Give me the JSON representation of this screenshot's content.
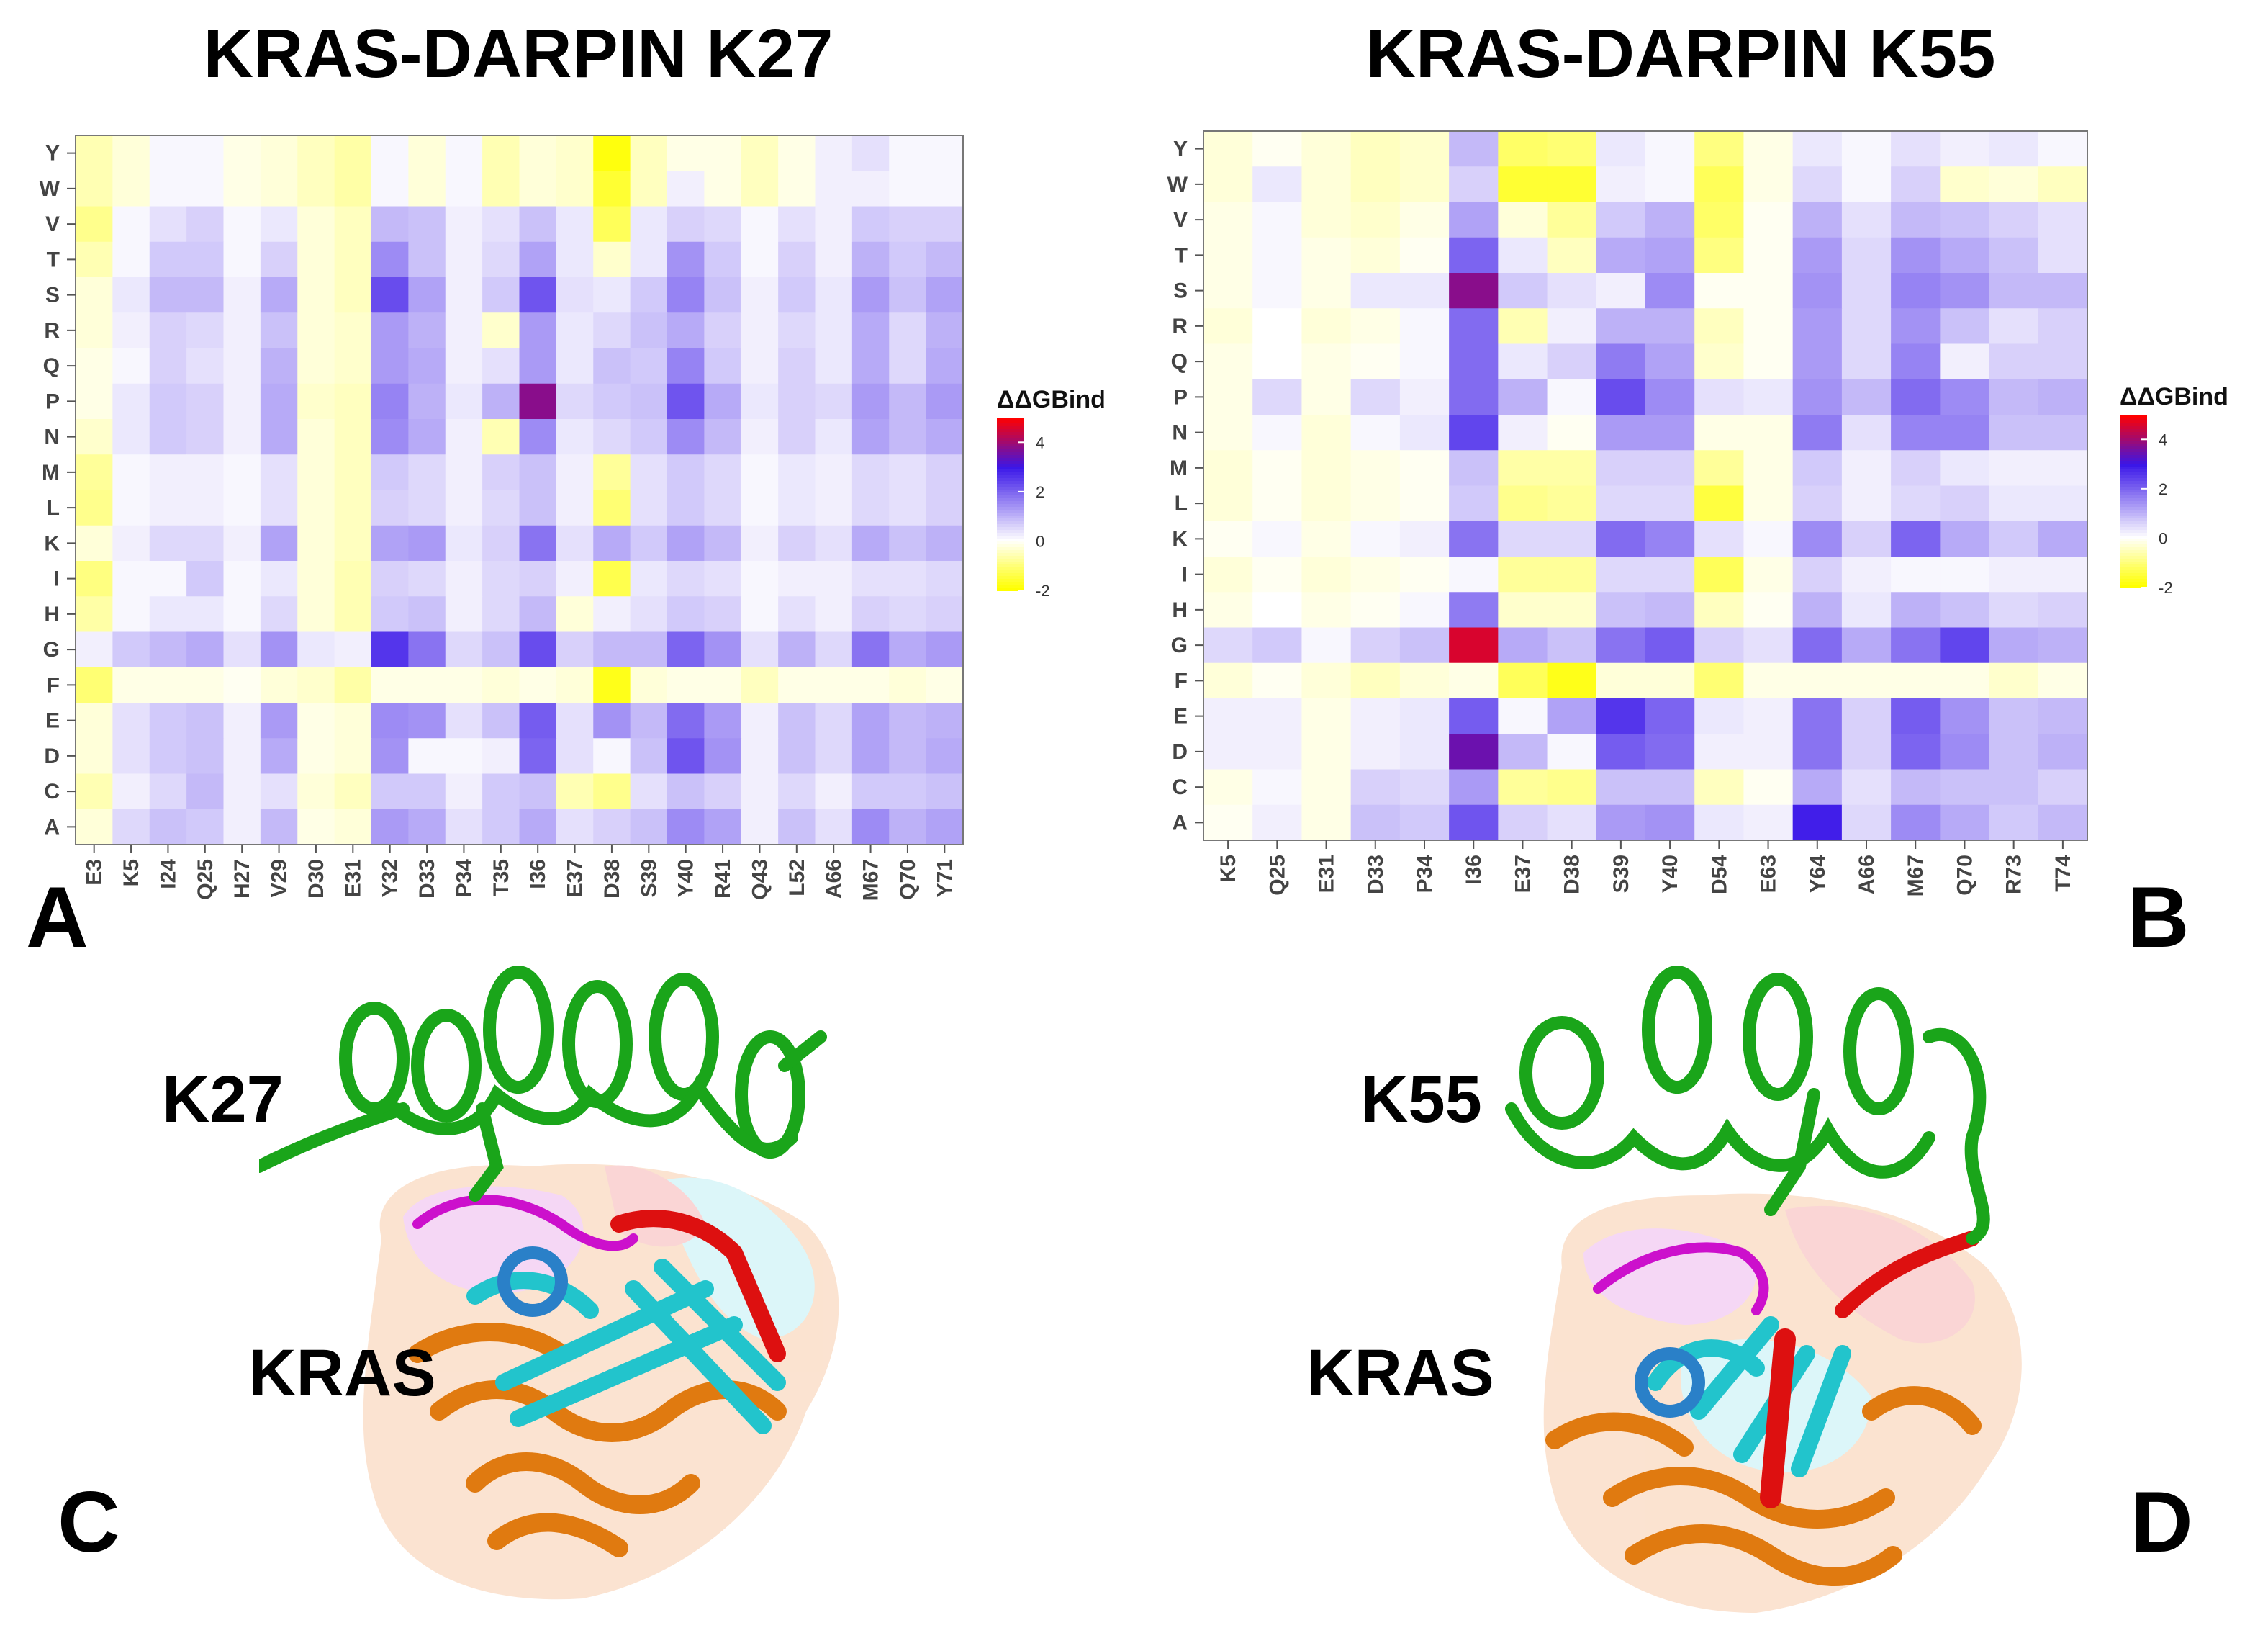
{
  "panels": {
    "A": "A",
    "B": "B",
    "C": "C",
    "D": "D"
  },
  "structure_labels": {
    "k27": "K27",
    "k55": "K55",
    "kras_left": "KRAS",
    "kras_right": "KRAS"
  },
  "legend": {
    "title": "ΔΔGBind",
    "ticks": [
      "4",
      "2",
      "0",
      "-2"
    ],
    "min": -2,
    "max": 5,
    "colors": {
      "low": "#ffff00",
      "zero": "#ffffff",
      "mid": "#3a16e8",
      "high": "#ff0000"
    }
  },
  "colors": {
    "darpin": "#1aa51a",
    "kras_core": "#e07a10",
    "kras_sheet": "#22c4cc",
    "switch1": "#cc10cc",
    "switch2": "#dd1010",
    "helix_blue": "#2a80c8"
  },
  "chart_data": [
    {
      "type": "heatmap",
      "title": "KRAS-DARPIN K27",
      "x": [
        "E3",
        "K5",
        "I24",
        "Q25",
        "H27",
        "V29",
        "D30",
        "E31",
        "Y32",
        "D33",
        "P34",
        "T35",
        "I36",
        "E37",
        "D38",
        "S39",
        "Y40",
        "R41",
        "Q43",
        "L52",
        "A66",
        "M67",
        "Q70",
        "Y71"
      ],
      "y": [
        "Y",
        "W",
        "V",
        "T",
        "S",
        "R",
        "Q",
        "P",
        "N",
        "M",
        "L",
        "K",
        "I",
        "H",
        "G",
        "F",
        "E",
        "D",
        "C",
        "A"
      ],
      "values": [
        [
          -0.6,
          -0.3,
          0.1,
          0.1,
          -0.2,
          -0.3,
          -0.5,
          -0.7,
          0.1,
          -0.3,
          0.1,
          -0.6,
          -0.3,
          -0.4,
          -1.9,
          -0.5,
          -0.2,
          -0.2,
          -0.5,
          -0.2,
          0.2,
          0.4,
          0.1,
          0.1
        ],
        [
          -0.6,
          -0.3,
          0.1,
          0.1,
          -0.2,
          -0.3,
          -0.5,
          -0.7,
          0.1,
          -0.3,
          0.1,
          -0.6,
          -0.3,
          -0.4,
          -1.6,
          -0.5,
          0.2,
          -0.2,
          -0.5,
          -0.2,
          0.2,
          0.2,
          0.1,
          0.1
        ],
        [
          -0.9,
          0.1,
          0.4,
          0.6,
          0.1,
          0.3,
          -0.3,
          -0.5,
          0.9,
          0.8,
          0.2,
          0.4,
          0.8,
          0.3,
          -1.3,
          0.3,
          0.6,
          0.5,
          0.1,
          0.4,
          0.2,
          0.7,
          0.6,
          0.6
        ],
        [
          -0.6,
          0.1,
          0.7,
          0.7,
          0.1,
          0.6,
          -0.3,
          -0.5,
          1.5,
          0.8,
          0.2,
          0.5,
          1.2,
          0.3,
          -0.4,
          0.3,
          1.4,
          0.7,
          0.1,
          0.6,
          0.2,
          1.0,
          0.7,
          0.9
        ],
        [
          -0.3,
          0.3,
          0.9,
          0.9,
          0.2,
          1.1,
          -0.3,
          -0.5,
          2.3,
          1.2,
          0.2,
          0.7,
          2.2,
          0.4,
          0.3,
          0.7,
          1.6,
          0.8,
          0.2,
          0.7,
          0.3,
          1.3,
          0.8,
          1.2
        ],
        [
          -0.3,
          0.2,
          0.6,
          0.5,
          0.2,
          0.8,
          -0.3,
          -0.4,
          1.3,
          1.0,
          0.2,
          -0.4,
          1.3,
          0.3,
          0.5,
          0.8,
          1.1,
          0.6,
          0.2,
          0.5,
          0.3,
          1.1,
          0.5,
          1.0
        ],
        [
          -0.2,
          0.1,
          0.6,
          0.4,
          0.2,
          1.0,
          -0.3,
          -0.4,
          1.3,
          1.1,
          0.2,
          0.4,
          1.3,
          0.3,
          0.8,
          0.7,
          1.6,
          0.7,
          0.2,
          0.6,
          0.3,
          1.1,
          0.5,
          1.1
        ],
        [
          -0.2,
          0.3,
          0.7,
          0.6,
          0.2,
          1.1,
          -0.4,
          -0.5,
          1.6,
          1.0,
          0.3,
          1.0,
          3.8,
          0.5,
          0.7,
          0.8,
          2.2,
          1.1,
          0.3,
          0.6,
          0.5,
          1.3,
          0.9,
          1.3
        ],
        [
          -0.4,
          0.3,
          0.7,
          0.6,
          0.2,
          1.1,
          -0.3,
          -0.5,
          1.5,
          1.1,
          0.2,
          -0.6,
          1.5,
          0.3,
          0.5,
          0.7,
          1.5,
          0.9,
          0.2,
          0.6,
          0.3,
          1.2,
          0.9,
          1.1
        ],
        [
          -0.8,
          0.1,
          0.2,
          0.2,
          0.1,
          0.4,
          -0.3,
          -0.5,
          0.7,
          0.5,
          0.2,
          0.6,
          0.8,
          0.2,
          -0.8,
          0.4,
          0.7,
          0.5,
          0.1,
          0.3,
          0.2,
          0.5,
          0.4,
          0.6
        ],
        [
          -0.9,
          0.1,
          0.2,
          0.2,
          0.1,
          0.4,
          -0.3,
          -0.5,
          0.6,
          0.5,
          0.2,
          0.5,
          0.8,
          0.2,
          -1.1,
          0.4,
          0.7,
          0.5,
          0.1,
          0.3,
          0.2,
          0.5,
          0.4,
          0.6
        ],
        [
          -0.3,
          0.2,
          0.5,
          0.5,
          0.2,
          1.2,
          -0.3,
          -0.5,
          1.2,
          1.3,
          0.3,
          0.6,
          1.8,
          0.4,
          1.1,
          0.7,
          1.2,
          0.9,
          0.2,
          0.6,
          0.4,
          1.1,
          0.8,
          1.0
        ],
        [
          -1.0,
          0.1,
          0.1,
          0.7,
          0.1,
          0.3,
          -0.3,
          -0.6,
          0.6,
          0.5,
          0.2,
          0.5,
          0.6,
          0.2,
          -1.4,
          0.3,
          0.5,
          0.4,
          0.1,
          0.2,
          0.2,
          0.4,
          0.4,
          0.5
        ],
        [
          -0.7,
          0.1,
          0.3,
          0.3,
          0.1,
          0.5,
          -0.3,
          -0.6,
          0.7,
          0.8,
          0.2,
          0.5,
          0.9,
          -0.3,
          0.2,
          0.4,
          0.7,
          0.6,
          0.1,
          0.4,
          0.2,
          0.6,
          0.5,
          0.6
        ],
        [
          0.2,
          0.7,
          0.9,
          1.1,
          0.4,
          1.4,
          0.3,
          0.2,
          2.6,
          1.8,
          0.5,
          0.8,
          2.3,
          0.6,
          0.9,
          0.9,
          2.0,
          1.4,
          0.4,
          1.0,
          0.5,
          1.8,
          1.1,
          1.3
        ],
        [
          -1.1,
          -0.2,
          -0.2,
          -0.2,
          -0.1,
          -0.3,
          -0.4,
          -0.7,
          -0.2,
          -0.2,
          -0.2,
          -0.3,
          -0.2,
          -0.3,
          -1.8,
          -0.3,
          -0.2,
          -0.2,
          -0.5,
          -0.2,
          -0.2,
          -0.2,
          -0.3,
          -0.2
        ],
        [
          -0.3,
          0.4,
          0.7,
          0.8,
          0.2,
          1.3,
          -0.2,
          -0.3,
          1.5,
          1.4,
          0.4,
          0.8,
          2.1,
          0.4,
          1.4,
          0.9,
          1.9,
          1.3,
          0.2,
          0.8,
          0.5,
          1.2,
          0.9,
          1.0
        ],
        [
          -0.3,
          0.4,
          0.7,
          0.8,
          0.2,
          1.1,
          -0.2,
          -0.3,
          1.4,
          0.1,
          0.1,
          0.2,
          2.0,
          0.4,
          0.1,
          0.8,
          2.2,
          1.4,
          0.2,
          0.8,
          0.5,
          1.2,
          0.9,
          1.1
        ],
        [
          -0.6,
          0.2,
          0.5,
          0.9,
          0.2,
          0.4,
          -0.3,
          -0.5,
          0.7,
          0.7,
          0.2,
          0.7,
          0.8,
          -0.6,
          -0.9,
          0.4,
          0.8,
          0.6,
          0.2,
          0.5,
          0.2,
          0.7,
          0.7,
          0.8
        ],
        [
          -0.3,
          0.5,
          0.8,
          0.7,
          0.2,
          0.9,
          -0.2,
          -0.3,
          1.3,
          1.1,
          0.4,
          0.7,
          1.1,
          0.4,
          0.6,
          0.8,
          1.5,
          1.2,
          0.2,
          0.8,
          0.4,
          1.5,
          1.0,
          1.2
        ]
      ],
      "legend_title": "ΔΔGBind",
      "color_range": [
        -2,
        5
      ]
    },
    {
      "type": "heatmap",
      "title": "KRAS-DARPIN K55",
      "x": [
        "K5",
        "Q25",
        "E31",
        "D33",
        "P34",
        "I36",
        "E37",
        "D38",
        "S39",
        "Y40",
        "D54",
        "E63",
        "Y64",
        "A66",
        "M67",
        "Q70",
        "R73",
        "T74"
      ],
      "y": [
        "Y",
        "W",
        "V",
        "T",
        "S",
        "R",
        "Q",
        "P",
        "N",
        "M",
        "L",
        "K",
        "I",
        "H",
        "G",
        "F",
        "E",
        "D",
        "C",
        "A"
      ],
      "values": [
        [
          -0.3,
          -0.1,
          -0.3,
          -0.5,
          -0.4,
          0.9,
          -1.2,
          -1.1,
          0.3,
          0.1,
          -1.0,
          -0.2,
          0.3,
          0.1,
          0.4,
          0.2,
          0.3,
          0.1
        ],
        [
          -0.3,
          0.3,
          -0.3,
          -0.5,
          -0.4,
          0.6,
          -1.6,
          -1.6,
          0.2,
          0.1,
          -1.3,
          -0.2,
          0.5,
          0.1,
          0.6,
          -0.4,
          -0.3,
          -0.5
        ],
        [
          -0.2,
          0.1,
          -0.3,
          -0.4,
          -0.2,
          1.2,
          -0.3,
          -0.8,
          0.7,
          1.0,
          -1.2,
          -0.1,
          1.0,
          0.4,
          0.9,
          0.8,
          0.6,
          0.4
        ],
        [
          -0.2,
          0.1,
          -0.2,
          -0.3,
          -0.1,
          2.0,
          0.3,
          -0.5,
          1.1,
          1.2,
          -1.0,
          -0.1,
          1.3,
          0.5,
          1.4,
          1.1,
          0.8,
          0.4
        ],
        [
          -0.2,
          0.1,
          -0.2,
          0.3,
          0.3,
          3.8,
          0.7,
          0.4,
          0.2,
          1.5,
          -0.1,
          -0.1,
          1.4,
          0.5,
          1.6,
          1.4,
          0.9,
          0.9
        ],
        [
          -0.3,
          0.0,
          -0.3,
          -0.2,
          0.1,
          1.9,
          -0.6,
          0.2,
          1.0,
          1.0,
          -0.5,
          -0.1,
          1.3,
          0.5,
          1.4,
          0.8,
          0.4,
          0.6
        ],
        [
          -0.2,
          0.0,
          -0.2,
          -0.1,
          0.1,
          1.9,
          0.3,
          0.6,
          1.7,
          1.2,
          -0.4,
          -0.1,
          1.3,
          0.5,
          1.6,
          0.2,
          0.6,
          0.6
        ],
        [
          -0.2,
          0.5,
          -0.2,
          0.5,
          0.2,
          1.9,
          1.0,
          0.1,
          2.3,
          1.5,
          0.4,
          0.3,
          1.4,
          0.9,
          1.9,
          1.5,
          0.9,
          1.0
        ],
        [
          -0.2,
          0.1,
          -0.3,
          0.1,
          0.3,
          2.4,
          0.2,
          -0.1,
          1.3,
          1.3,
          -0.2,
          -0.2,
          1.7,
          0.4,
          1.6,
          1.6,
          0.8,
          0.8
        ],
        [
          -0.3,
          -0.1,
          -0.3,
          -0.2,
          -0.1,
          0.8,
          -0.7,
          -0.7,
          0.6,
          0.6,
          -0.8,
          -0.2,
          0.7,
          0.2,
          0.6,
          0.3,
          0.2,
          0.2
        ],
        [
          -0.3,
          -0.1,
          -0.3,
          -0.2,
          -0.1,
          0.7,
          -0.9,
          -0.8,
          0.5,
          0.5,
          -1.5,
          -0.2,
          0.6,
          0.2,
          0.5,
          0.6,
          0.3,
          0.3
        ],
        [
          -0.1,
          0.1,
          -0.2,
          0.1,
          0.2,
          1.8,
          0.5,
          0.5,
          1.9,
          1.6,
          0.4,
          0.1,
          1.5,
          0.6,
          2.0,
          1.1,
          0.7,
          1.1
        ],
        [
          -0.3,
          -0.1,
          -0.3,
          -0.2,
          -0.1,
          0.1,
          -0.8,
          -0.8,
          0.5,
          0.5,
          -1.3,
          -0.2,
          0.6,
          0.2,
          0.1,
          0.1,
          0.2,
          0.2
        ],
        [
          -0.2,
          0.0,
          -0.2,
          -0.1,
          0.1,
          1.7,
          -0.4,
          -0.4,
          0.8,
          0.9,
          -0.5,
          -0.1,
          1.0,
          0.3,
          1.0,
          0.8,
          0.5,
          0.6
        ],
        [
          0.5,
          0.7,
          0.1,
          0.6,
          0.8,
          4.6,
          1.1,
          0.8,
          1.8,
          2.1,
          0.6,
          0.4,
          1.9,
          1.1,
          1.8,
          2.4,
          1.1,
          1.0
        ],
        [
          -0.3,
          -0.1,
          -0.3,
          -0.5,
          -0.3,
          -0.2,
          -1.3,
          -1.8,
          -0.3,
          -0.3,
          -1.1,
          -0.2,
          -0.2,
          -0.2,
          -0.2,
          -0.2,
          -0.4,
          -0.2
        ],
        [
          0.2,
          0.2,
          -0.2,
          0.2,
          0.3,
          2.1,
          0.1,
          1.2,
          2.6,
          2.0,
          0.3,
          0.2,
          1.8,
          0.6,
          2.1,
          1.4,
          0.8,
          0.9
        ],
        [
          0.2,
          0.2,
          -0.2,
          0.2,
          0.3,
          3.5,
          0.9,
          0.1,
          2.1,
          1.9,
          0.2,
          0.2,
          1.8,
          0.6,
          2.0,
          1.5,
          0.8,
          1.0
        ],
        [
          -0.2,
          0.1,
          -0.2,
          0.6,
          0.5,
          1.3,
          -0.8,
          -0.9,
          0.8,
          0.8,
          -0.5,
          -0.1,
          1.1,
          0.4,
          0.9,
          0.8,
          0.8,
          0.6
        ],
        [
          -0.1,
          0.2,
          -0.2,
          0.8,
          0.7,
          2.2,
          0.6,
          0.4,
          1.3,
          1.4,
          0.3,
          0.2,
          2.9,
          0.5,
          1.5,
          1.1,
          0.7,
          0.9
        ]
      ],
      "legend_title": "ΔΔGBind",
      "color_range": [
        -2,
        5
      ]
    }
  ]
}
